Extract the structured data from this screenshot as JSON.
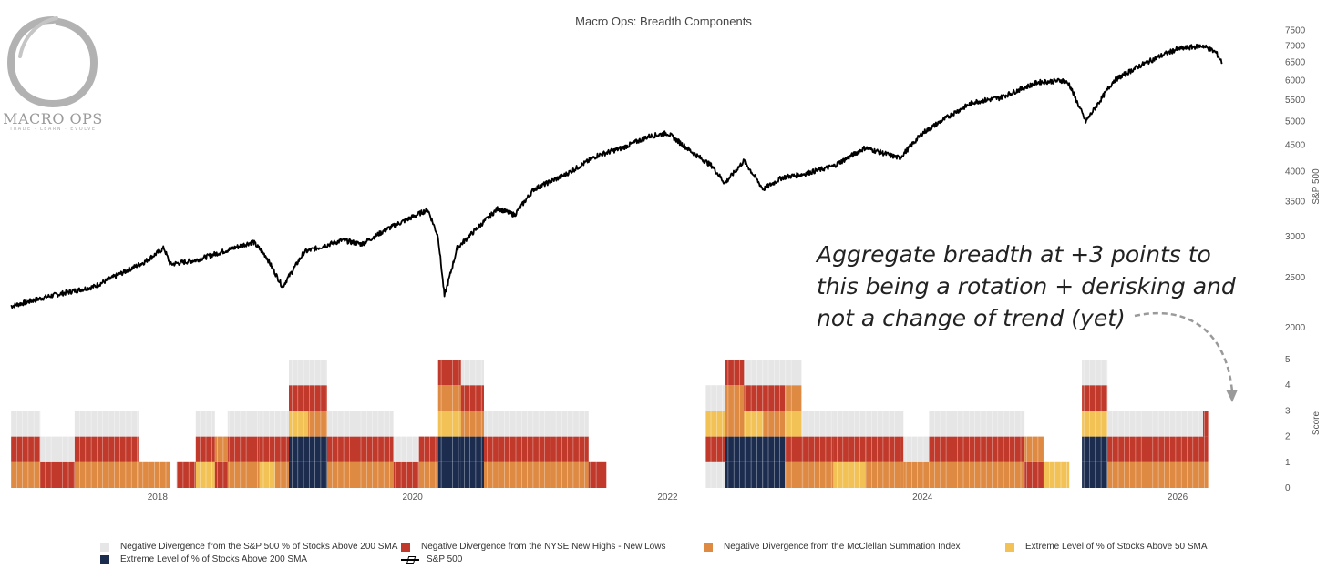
{
  "logo": {
    "text": "MACRO OPS",
    "tagline": "TRADE · LEARN · EVOLVE"
  },
  "annotation": {
    "lines": [
      "Aggregate breadth at +3 points to",
      "this being a rotation + derisking and",
      "not a change of trend (yet)"
    ]
  },
  "chart_data": [
    {
      "type": "line",
      "title": "Macro Ops: Breadth Components",
      "series_name": "S&P 500",
      "ylabel": "S&P 500",
      "yscale": "log",
      "ylim": [
        2000,
        7600
      ],
      "y_ticks": [
        2000,
        2500,
        3000,
        3500,
        4000,
        4500,
        5000,
        5500,
        6000,
        6500,
        7000,
        7500
      ],
      "x_start": 2016.85,
      "x_end": 2026.45,
      "x_ticks": [
        "2018",
        "2020",
        "2022",
        "2024",
        "2026"
      ],
      "x": [
        2016.85,
        2017.0,
        2017.15,
        2017.5,
        2017.9,
        2018.05,
        2018.1,
        2018.3,
        2018.5,
        2018.75,
        2018.85,
        2018.98,
        2019.15,
        2019.45,
        2019.6,
        2019.8,
        2020.12,
        2020.2,
        2020.25,
        2020.35,
        2020.5,
        2020.67,
        2020.8,
        2020.95,
        2021.2,
        2021.45,
        2021.65,
        2021.85,
        2022.0,
        2022.2,
        2022.35,
        2022.45,
        2022.6,
        2022.75,
        2022.9,
        2023.05,
        2023.3,
        2023.55,
        2023.82,
        2024.0,
        2024.25,
        2024.4,
        2024.6,
        2024.9,
        2025.1,
        2025.15,
        2025.28,
        2025.5,
        2025.7,
        2025.9,
        2026.0,
        2026.2,
        2026.3,
        2026.35
      ],
      "values": [
        2200,
        2250,
        2300,
        2400,
        2680,
        2850,
        2650,
        2700,
        2800,
        2930,
        2750,
        2400,
        2800,
        2950,
        2900,
        3100,
        3380,
        3000,
        2300,
        2850,
        3100,
        3400,
        3300,
        3700,
        3950,
        4300,
        4450,
        4680,
        4750,
        4350,
        4100,
        3800,
        4200,
        3700,
        3900,
        3950,
        4100,
        4450,
        4250,
        4750,
        5200,
        5450,
        5550,
        5950,
        6000,
        5900,
        5000,
        6000,
        6400,
        6750,
        6900,
        7000,
        6800,
        6500
      ]
    },
    {
      "type": "bar",
      "stacked": true,
      "ylabel": "Score",
      "ylim": [
        0,
        5
      ],
      "y_ticks": [
        0,
        1,
        2,
        3,
        4,
        5
      ],
      "legend": [
        {
          "name": "Negative Divergence from the S&P 500 % of Stocks Above 200 SMA",
          "color": "#e6e6e6"
        },
        {
          "name": "Negative Divergence from the NYSE New Highs - New Lows",
          "color": "#c0392b"
        },
        {
          "name": "Negative Divergence from the McClellan Summation Index",
          "color": "#de8a43"
        },
        {
          "name": "Extreme Level of % of Stocks Above 50 SMA",
          "color": "#f2c257"
        },
        {
          "name": "Extreme Level of % of Stocks Above 200 SMA",
          "color": "#1b2c4f"
        },
        {
          "name": "S&P 500",
          "color": "#000000"
        }
      ],
      "periods": [
        {
          "start": 2016.85,
          "end": 2017.08,
          "layers": [
            "orange",
            "red",
            "gray"
          ]
        },
        {
          "start": 2017.08,
          "end": 2017.35,
          "layers": [
            "red",
            "gray"
          ]
        },
        {
          "start": 2017.35,
          "end": 2017.85,
          "layers": [
            "orange",
            "red",
            "gray"
          ]
        },
        {
          "start": 2017.85,
          "end": 2018.1,
          "layers": [
            "orange"
          ]
        },
        {
          "start": 2018.15,
          "end": 2018.3,
          "layers": [
            "red"
          ]
        },
        {
          "start": 2018.3,
          "end": 2018.45,
          "layers": [
            "yellow",
            "red",
            "gray"
          ]
        },
        {
          "start": 2018.45,
          "end": 2018.55,
          "layers": [
            "red",
            "orange"
          ]
        },
        {
          "start": 2018.55,
          "end": 2018.8,
          "layers": [
            "orange",
            "red",
            "gray"
          ]
        },
        {
          "start": 2018.8,
          "end": 2018.92,
          "layers": [
            "yellow",
            "red",
            "gray"
          ]
        },
        {
          "start": 2018.92,
          "end": 2019.03,
          "layers": [
            "orange",
            "red",
            "gray"
          ]
        },
        {
          "start": 2019.03,
          "end": 2019.18,
          "layers": [
            "navy",
            "navy",
            "yellow",
            "red",
            "gray"
          ]
        },
        {
          "start": 2019.18,
          "end": 2019.33,
          "layers": [
            "navy",
            "navy",
            "orange",
            "red",
            "gray"
          ]
        },
        {
          "start": 2019.33,
          "end": 2019.85,
          "layers": [
            "orange",
            "red",
            "gray"
          ]
        },
        {
          "start": 2019.85,
          "end": 2020.05,
          "layers": [
            "red",
            "gray"
          ]
        },
        {
          "start": 2020.05,
          "end": 2020.2,
          "layers": [
            "orange",
            "red"
          ]
        },
        {
          "start": 2020.2,
          "end": 2020.38,
          "layers": [
            "navy",
            "navy",
            "yellow",
            "orange",
            "red"
          ]
        },
        {
          "start": 2020.38,
          "end": 2020.56,
          "layers": [
            "navy",
            "navy",
            "orange",
            "red",
            "gray"
          ]
        },
        {
          "start": 2020.56,
          "end": 2021.0,
          "layers": [
            "orange",
            "red",
            "gray"
          ]
        },
        {
          "start": 2021.0,
          "end": 2021.38,
          "layers": [
            "orange",
            "red",
            "gray"
          ]
        },
        {
          "start": 2021.38,
          "end": 2021.52,
          "layers": [
            "red"
          ]
        },
        {
          "start": 2022.3,
          "end": 2022.45,
          "layers": [
            "gray",
            "red",
            "yellow",
            "gray"
          ]
        },
        {
          "start": 2022.45,
          "end": 2022.6,
          "layers": [
            "navy",
            "navy",
            "orange",
            "orange",
            "red"
          ]
        },
        {
          "start": 2022.6,
          "end": 2022.75,
          "layers": [
            "navy",
            "navy",
            "yellow",
            "red",
            "gray"
          ]
        },
        {
          "start": 2022.75,
          "end": 2022.92,
          "layers": [
            "navy",
            "navy",
            "orange",
            "red",
            "gray"
          ]
        },
        {
          "start": 2022.92,
          "end": 2023.05,
          "layers": [
            "orange",
            "red",
            "yellow",
            "orange",
            "gray"
          ]
        },
        {
          "start": 2023.05,
          "end": 2023.3,
          "layers": [
            "orange",
            "red",
            "gray"
          ]
        },
        {
          "start": 2023.3,
          "end": 2023.55,
          "layers": [
            "yellow",
            "red",
            "gray"
          ]
        },
        {
          "start": 2023.55,
          "end": 2023.85,
          "layers": [
            "orange",
            "red",
            "gray"
          ]
        },
        {
          "start": 2023.85,
          "end": 2024.05,
          "layers": [
            "orange",
            "gray"
          ]
        },
        {
          "start": 2024.05,
          "end": 2024.8,
          "layers": [
            "orange",
            "red",
            "gray"
          ]
        },
        {
          "start": 2024.8,
          "end": 2024.95,
          "layers": [
            "red",
            "orange"
          ]
        },
        {
          "start": 2024.95,
          "end": 2025.15,
          "layers": [
            "yellow"
          ]
        },
        {
          "start": 2025.25,
          "end": 2025.45,
          "layers": [
            "navy",
            "navy",
            "yellow",
            "red",
            "gray"
          ]
        },
        {
          "start": 2025.45,
          "end": 2026.2,
          "layers": [
            "orange",
            "red",
            "gray"
          ]
        },
        {
          "start": 2026.2,
          "end": 2026.24,
          "layers": [
            "orange",
            "red",
            "red"
          ]
        }
      ]
    }
  ]
}
